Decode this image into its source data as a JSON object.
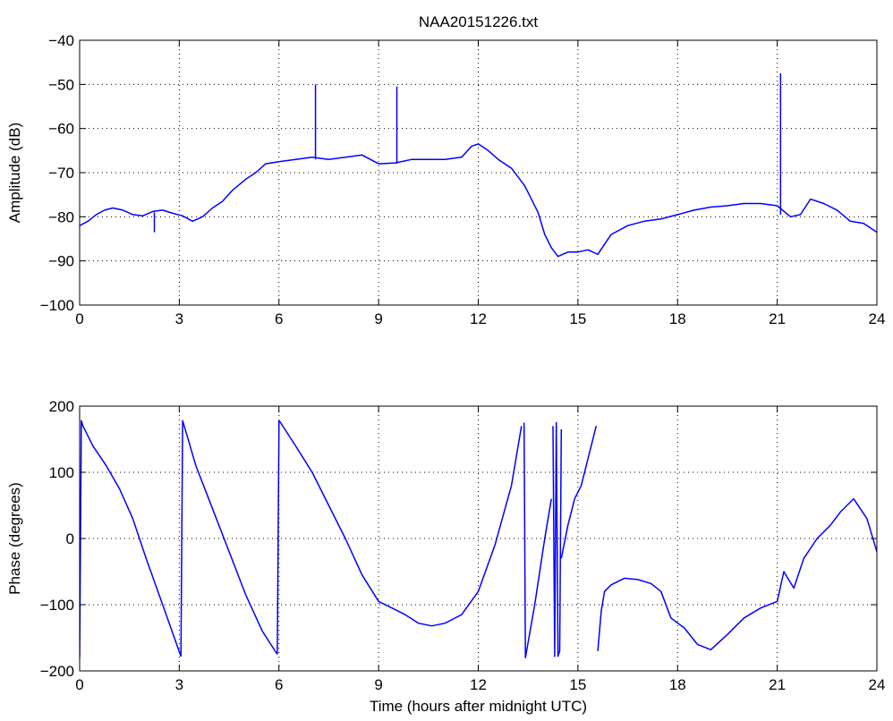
{
  "figure": {
    "title": "NAA20151226.txt",
    "line_color": "#0000ff",
    "grid_color": "#000000",
    "background": "#ffffff"
  },
  "chart_data": [
    {
      "type": "line",
      "title": "NAA20151226.txt",
      "xlabel": "",
      "ylabel": "Amplitude (dB)",
      "xlim": [
        0,
        24
      ],
      "ylim": [
        -100,
        -40
      ],
      "xticks": [
        0,
        3,
        6,
        9,
        12,
        15,
        18,
        21,
        24
      ],
      "yticks": [
        -100,
        -90,
        -80,
        -70,
        -60,
        -50,
        -40
      ],
      "grid": "dotted",
      "series": [
        {
          "color": "#0000ff",
          "x": [
            0,
            0.25,
            0.5,
            0.75,
            1.0,
            1.3,
            1.6,
            1.9,
            2.2,
            2.5,
            2.8,
            3.1,
            3.4,
            3.7,
            4.0,
            4.3,
            4.6,
            5.0,
            5.3,
            5.6,
            6.0,
            6.5,
            7.0,
            7.5,
            8.0,
            8.5,
            9.0,
            9.5,
            10.0,
            10.5,
            11.0,
            11.5,
            11.8,
            12.0,
            12.3,
            12.6,
            13.0,
            13.4,
            13.8,
            14.0,
            14.2,
            14.4,
            14.7,
            15.0,
            15.3,
            15.6,
            16.0,
            16.5,
            17.0,
            17.5,
            18.0,
            18.5,
            19.0,
            19.5,
            20.0,
            20.5,
            21.0,
            21.4,
            21.7,
            22.0,
            22.4,
            22.8,
            23.2,
            23.6,
            24.0
          ],
          "y": [
            -82,
            -81,
            -79.5,
            -78.5,
            -78,
            -78.5,
            -79.5,
            -79.8,
            -78.8,
            -78.5,
            -79.2,
            -79.8,
            -81,
            -80,
            -78,
            -76.5,
            -74,
            -71.5,
            -70,
            -68,
            -67.5,
            -67,
            -66.5,
            -67,
            -66.5,
            -66,
            -68,
            -67.8,
            -67,
            -67,
            -67,
            -66.5,
            -64,
            -63.5,
            -65,
            -67,
            -69,
            -73,
            -79,
            -84,
            -87,
            -89,
            -88,
            -88,
            -87.5,
            -88.5,
            -84,
            -82,
            -81,
            -80.5,
            -79.5,
            -78.5,
            -77.8,
            -77.5,
            -77,
            -77,
            -77.5,
            -80,
            -79.5,
            -76,
            -77,
            -78.5,
            -81,
            -81.5,
            -83.5
          ]
        }
      ],
      "spikes": [
        {
          "x": 2.25,
          "y_from": -79,
          "y_to": -83.5
        },
        {
          "x": 7.1,
          "y_from": -67,
          "y_to": -50
        },
        {
          "x": 9.55,
          "y_from": -68,
          "y_to": -50.5
        },
        {
          "x": 21.1,
          "y_from": -79.5,
          "y_to": -47.5
        }
      ]
    },
    {
      "type": "line",
      "title": "",
      "xlabel": "Time (hours after midnight UTC)",
      "ylabel": "Phase (degrees)",
      "xlim": [
        0,
        24
      ],
      "ylim": [
        -200,
        200
      ],
      "xticks": [
        0,
        3,
        6,
        9,
        12,
        15,
        18,
        21,
        24
      ],
      "yticks": [
        -200,
        -100,
        0,
        100,
        200
      ],
      "grid": "dotted",
      "series": [
        {
          "color": "#0000ff",
          "segments": [
            {
              "x": [
                0.0,
                0.05,
                0.1,
                0.4,
                0.8,
                1.2,
                1.6,
                2.0,
                2.5,
                3.05
              ],
              "y": [
                -180,
                178,
                170,
                140,
                110,
                75,
                30,
                -30,
                -100,
                -178
              ]
            },
            {
              "x": [
                3.05,
                3.1,
                3.15,
                3.5,
                4.0,
                4.5,
                5.0,
                5.5,
                5.95
              ],
              "y": [
                -178,
                178,
                170,
                110,
                45,
                -20,
                -85,
                -140,
                -175
              ]
            },
            {
              "x": [
                5.95,
                6.0,
                6.05,
                6.5,
                7.0,
                7.5,
                8.0,
                8.5,
                9.0,
                9.4,
                9.8,
                10.2,
                10.6,
                11.0,
                11.5,
                12.0,
                12.5,
                13.0,
                13.3
              ],
              "y": [
                -175,
                178,
                175,
                140,
                100,
                50,
                0,
                -55,
                -95,
                -105,
                -115,
                -128,
                -132,
                -128,
                -115,
                -80,
                -10,
                80,
                170
              ]
            },
            {
              "x": [
                13.38,
                13.42,
                13.7,
                14.0,
                14.2
              ],
              "y": [
                175,
                -180,
                -100,
                0,
                60
              ]
            },
            {
              "x": [
                14.25,
                14.3,
                14.35,
                14.4,
                14.45,
                14.5
              ],
              "y": [
                170,
                -178,
                175,
                -178,
                -170,
                165
              ]
            },
            {
              "x": [
                14.5,
                14.7,
                14.9,
                15.1,
                15.3,
                15.55
              ],
              "y": [
                -30,
                20,
                60,
                80,
                120,
                170
              ]
            },
            {
              "x": [
                15.6,
                15.7,
                15.8,
                16.0,
                16.4,
                16.8,
                17.2,
                17.5,
                17.8,
                18.2,
                18.6,
                19.0,
                19.5,
                20.0,
                20.5,
                21.0,
                21.2,
                21.5,
                21.8,
                22.2,
                22.6,
                22.9,
                23.3,
                23.7,
                24.0
              ],
              "y": [
                -170,
                -110,
                -80,
                -70,
                -60,
                -62,
                -68,
                -80,
                -120,
                -135,
                -160,
                -168,
                -145,
                -120,
                -105,
                -95,
                -50,
                -75,
                -30,
                0,
                20,
                40,
                60,
                30,
                -20
              ]
            }
          ]
        }
      ]
    }
  ]
}
